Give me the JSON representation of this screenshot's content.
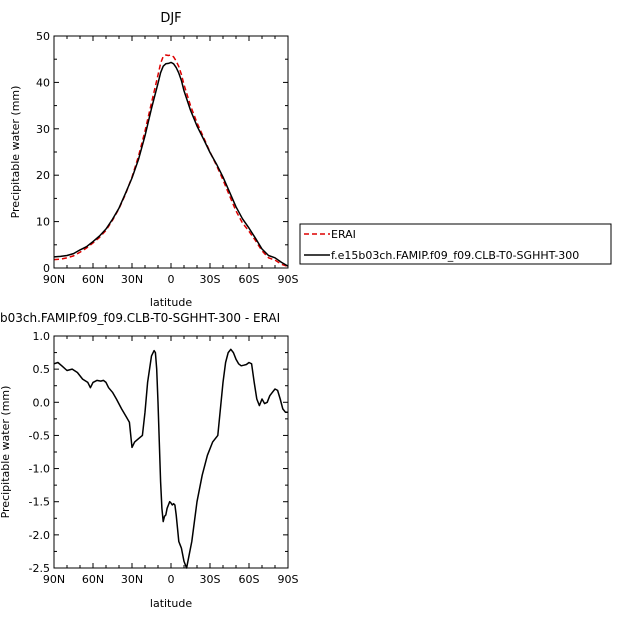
{
  "chart_data": [
    {
      "type": "line",
      "title": "DJF",
      "ylabel": "Precipitable water (mm)",
      "xlabel": "latitude",
      "xlim": [
        90,
        -90
      ],
      "ylim": [
        0,
        50
      ],
      "x_ticks": [
        90,
        60,
        30,
        0,
        -30,
        -60,
        -90
      ],
      "x_tick_labels": [
        "90N",
        "60N",
        "30N",
        "0",
        "30S",
        "60S",
        "90S"
      ],
      "y_ticks": [
        0,
        10,
        20,
        30,
        40,
        50
      ],
      "y_tick_labels": [
        "0",
        "10",
        "20",
        "30",
        "40",
        "50"
      ],
      "legend_position": "right",
      "series": [
        {
          "name": "ERAI",
          "color": "#dd0000",
          "dash": true,
          "x": [
            90,
            85,
            80,
            75,
            70,
            65,
            60,
            55,
            50,
            45,
            40,
            35,
            30,
            25,
            20,
            15,
            10,
            8,
            6,
            4,
            2,
            0,
            -2,
            -4,
            -6,
            -8,
            -10,
            -15,
            -20,
            -25,
            -30,
            -35,
            -40,
            -45,
            -50,
            -55,
            -60,
            -65,
            -70,
            -75,
            -80,
            -85,
            -90
          ],
          "y": [
            1.8,
            1.9,
            2.2,
            2.6,
            3.4,
            4.3,
            5.4,
            6.6,
            8.1,
            10.3,
            12.8,
            15.9,
            19.6,
            24.1,
            29.5,
            35.6,
            41.6,
            44.1,
            45.6,
            45.9,
            45.8,
            45.9,
            45.5,
            44.6,
            43.4,
            41.7,
            39.5,
            35.0,
            31.3,
            28.2,
            25.0,
            22.1,
            19.0,
            15.6,
            12.3,
            9.7,
            7.9,
            5.9,
            3.7,
            2.2,
            1.7,
            0.8,
            0.3
          ]
        },
        {
          "name": "f.e15b03ch.FAMIP.f09_f09.CLB-T0-SGHHT-300",
          "color": "#000000",
          "dash": false,
          "x": [
            90,
            85,
            80,
            75,
            70,
            65,
            60,
            55,
            50,
            45,
            40,
            35,
            30,
            25,
            20,
            15,
            10,
            8,
            6,
            4,
            2,
            0,
            -2,
            -4,
            -6,
            -8,
            -10,
            -15,
            -20,
            -25,
            -30,
            -35,
            -40,
            -45,
            -50,
            -55,
            -60,
            -65,
            -70,
            -75,
            -80,
            -85,
            -90
          ],
          "y": [
            2.4,
            2.5,
            2.7,
            3.1,
            3.9,
            4.6,
            5.7,
            6.9,
            8.4,
            10.5,
            12.9,
            16.1,
            19.4,
            23.4,
            28.5,
            34.4,
            39.8,
            42.1,
            43.5,
            44.0,
            44.1,
            44.3,
            44.0,
            43.2,
            42.0,
            40.4,
            38.2,
            34.0,
            30.6,
            27.8,
            24.9,
            22.4,
            19.6,
            16.4,
            13.2,
            10.6,
            8.6,
            6.4,
            4.1,
            2.7,
            2.2,
            1.2,
            0.4
          ]
        }
      ]
    },
    {
      "type": "line",
      "title": "b03ch.FAMIP.f09_f09.CLB-T0-SGHHT-300 - ERAI",
      "ylabel": "Precipitable water (mm)",
      "xlabel": "latitude",
      "xlim": [
        90,
        -90
      ],
      "ylim": [
        -2.5,
        1.0
      ],
      "x_ticks": [
        90,
        60,
        30,
        0,
        -30,
        -60,
        -90
      ],
      "x_tick_labels": [
        "90N",
        "60N",
        "30N",
        "0",
        "30S",
        "60S",
        "90S"
      ],
      "y_ticks": [
        -2.5,
        -2.0,
        -1.5,
        -1.0,
        -0.5,
        0.0,
        0.5,
        1.0
      ],
      "y_tick_labels": [
        "-2.5",
        "-2.0",
        "-1.5",
        "-1.0",
        "-0.5",
        "0.0",
        "0.5",
        "1.0"
      ],
      "series": [
        {
          "color": "#000000",
          "dash": false,
          "x": [
            90,
            87,
            84,
            80,
            76,
            72,
            68,
            64,
            62,
            60,
            57,
            54,
            52,
            50,
            48,
            45,
            42,
            38,
            35,
            32,
            30,
            28,
            25,
            22,
            20,
            18,
            15,
            13,
            12,
            11,
            10,
            9,
            8,
            7,
            6,
            5,
            4,
            3,
            2,
            1,
            0,
            -1,
            -2,
            -3,
            -4,
            -5,
            -6,
            -7,
            -8,
            -10,
            -12,
            -14,
            -16,
            -18,
            -20,
            -24,
            -28,
            -32,
            -36,
            -38,
            -40,
            -42,
            -44,
            -46,
            -48,
            -50,
            -52,
            -54,
            -56,
            -58,
            -60,
            -62,
            -64,
            -66,
            -68,
            -70,
            -72,
            -74,
            -76,
            -78,
            -80,
            -82,
            -84,
            -86,
            -88,
            -90
          ],
          "y": [
            0.58,
            0.6,
            0.55,
            0.48,
            0.5,
            0.45,
            0.35,
            0.3,
            0.22,
            0.3,
            0.33,
            0.32,
            0.33,
            0.3,
            0.22,
            0.15,
            0.05,
            -0.1,
            -0.2,
            -0.3,
            -0.68,
            -0.6,
            -0.55,
            -0.5,
            -0.15,
            0.3,
            0.7,
            0.78,
            0.75,
            0.5,
            0.0,
            -0.6,
            -1.2,
            -1.6,
            -1.8,
            -1.72,
            -1.7,
            -1.6,
            -1.55,
            -1.5,
            -1.52,
            -1.55,
            -1.53,
            -1.55,
            -1.7,
            -1.9,
            -2.1,
            -2.15,
            -2.2,
            -2.4,
            -2.5,
            -2.3,
            -2.1,
            -1.8,
            -1.5,
            -1.1,
            -0.8,
            -0.6,
            -0.5,
            -0.1,
            0.3,
            0.6,
            0.75,
            0.8,
            0.75,
            0.65,
            0.58,
            0.55,
            0.56,
            0.57,
            0.6,
            0.58,
            0.3,
            0.05,
            -0.05,
            0.05,
            -0.02,
            0.0,
            0.1,
            0.15,
            0.2,
            0.18,
            0.05,
            -0.1,
            -0.15,
            -0.15
          ]
        }
      ]
    }
  ]
}
